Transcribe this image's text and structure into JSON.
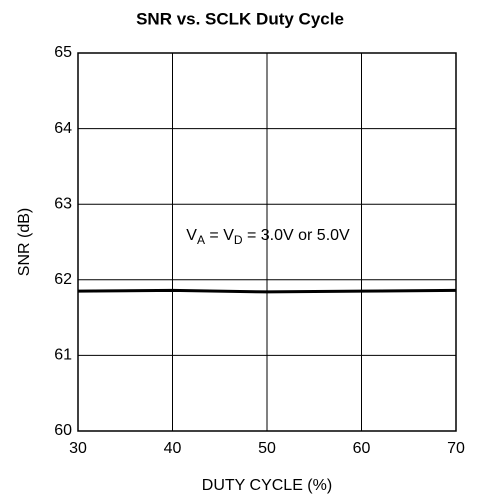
{
  "chart_data": {
    "type": "line",
    "title": "SNR vs. SCLK Duty Cycle",
    "x_label": "DUTY CYCLE (%)",
    "y_label": "SNR (dB)",
    "annotation": [
      "V",
      "A",
      " = V",
      "D",
      " = 3.0V or 5.0V"
    ],
    "x": [
      30,
      40,
      50,
      60,
      70
    ],
    "series": [
      {
        "name": "SNR",
        "color": "#000000",
        "values": [
          61.85,
          61.86,
          61.84,
          61.85,
          61.86
        ]
      }
    ],
    "xlim": [
      30,
      70
    ],
    "xticks": [
      30,
      40,
      50,
      60,
      70
    ],
    "ylim": [
      60,
      65
    ],
    "yticks": [
      60,
      61,
      62,
      63,
      64,
      65
    ],
    "grid": true
  }
}
